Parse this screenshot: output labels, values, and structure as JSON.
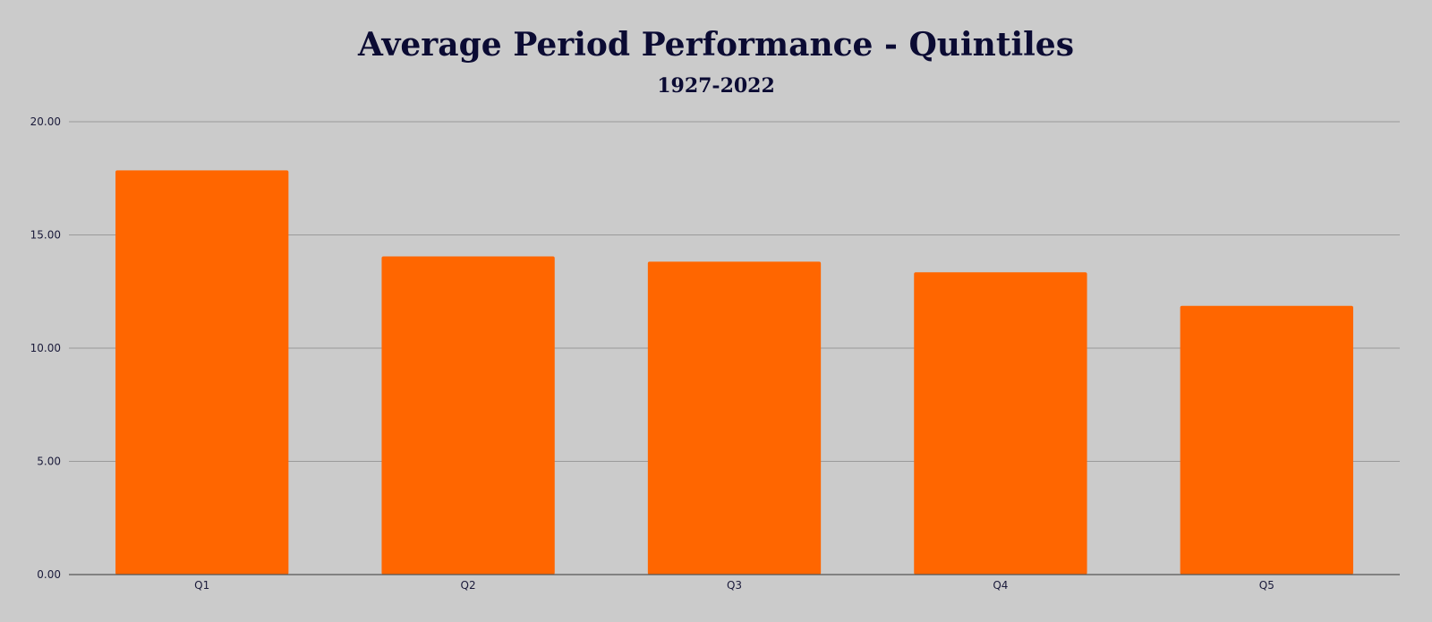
{
  "chart_data": {
    "type": "bar",
    "title": "Average Period Performance - Quintiles",
    "subtitle": "1927-2022",
    "categories": [
      "Q1",
      "Q2",
      "Q3",
      "Q4",
      "Q5"
    ],
    "values": [
      17.85,
      14.05,
      13.82,
      13.35,
      11.87
    ],
    "xlabel": "",
    "ylabel": "",
    "ylim": [
      0,
      20
    ],
    "yticks": [
      "0.00",
      "5.00",
      "10.00",
      "15.00",
      "20.00"
    ],
    "grid": true,
    "legend": "none",
    "colors": {
      "bar": "#ff6600",
      "background": "#cbcbcb",
      "title": "#0b0b33"
    }
  }
}
